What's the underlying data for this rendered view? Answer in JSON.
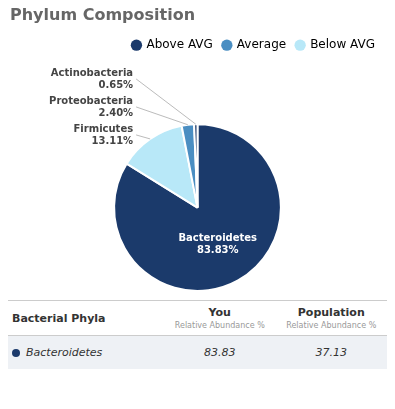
{
  "chart_data": {
    "type": "pie",
    "title": "Phylum Composition",
    "categories": [
      "Bacteroidetes",
      "Firmicutes",
      "Proteobacteria",
      "Actinobacteria"
    ],
    "values": [
      83.83,
      13.11,
      2.4,
      0.65
    ],
    "colors": [
      "#1b3a6b",
      "#b8e8f8",
      "#4a8ec2",
      "#1b3a6b"
    ],
    "data_labels": true,
    "value_labels": [
      "83.83%",
      "13.11%",
      "2.40%",
      "0.65%"
    ],
    "legend": "upper right",
    "legend_items": [
      {
        "label": "Above AVG",
        "color": "#1b3a6b"
      },
      {
        "label": "Average",
        "color": "#4a8ec2"
      },
      {
        "label": "Below AVG",
        "color": "#b8e8f8"
      }
    ],
    "table": {
      "columns": [
        {
          "header": "Bacterial Phyla"
        },
        {
          "header": "You",
          "subheader": "Relative Abundance %"
        },
        {
          "header": "Population",
          "subheader": "Relative Abundance %"
        }
      ],
      "rows": [
        {
          "label": "Bacteroidetes",
          "color": "#1b3a6b",
          "values": [
            83.83,
            37.13
          ]
        }
      ]
    }
  }
}
